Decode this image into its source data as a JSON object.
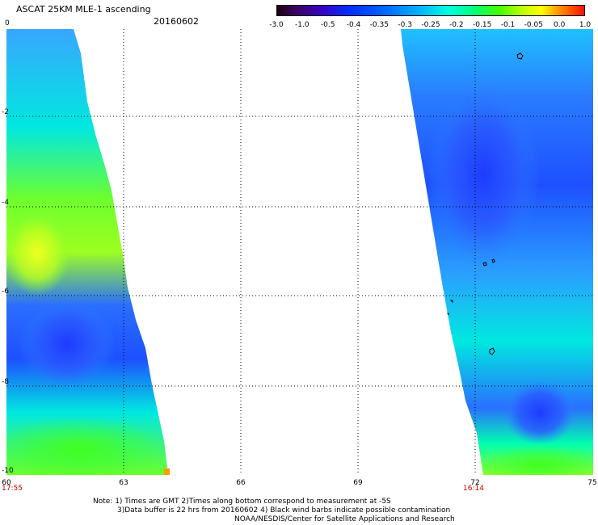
{
  "header": {
    "title": "ASCAT 25KM MLE-1 ascending",
    "date": "20160602"
  },
  "colorbar": {
    "ticks": [
      "-3.0",
      "-1.0",
      "-0.5",
      "-0.4",
      "-0.35",
      "-0.3",
      "-0.25",
      "-0.2",
      "-0.15",
      "-0.1",
      "-0.05",
      "0.0",
      "1.0"
    ]
  },
  "axes": {
    "y_labels": [
      "0",
      "-2",
      "-4",
      "-6",
      "-8",
      "-10"
    ],
    "x_labels": [
      "60",
      "63",
      "66",
      "69",
      "72",
      "75"
    ],
    "time_left": "17:55",
    "time_right": "16:14"
  },
  "notes": {
    "line1": "Note: 1) Times are GMT 2)Times along bottom correspond to measurement at -5S",
    "line2": "3)Data buffer is 22 hrs from 20160602 4) Black wind barbs indicate possible contamination",
    "line3": "NOAA/NESDIS/Center for Satellite Applications and Research"
  },
  "colors": {
    "swath_blue": "#2a6dff",
    "swath_deepblue": "#1e3cff",
    "swath_cyan": "#00e8f0",
    "swath_green": "#4cff3a",
    "swath_yellowgreen": "#c8ff20",
    "swath_orange": "#ff9a00",
    "grid": "#000000"
  }
}
